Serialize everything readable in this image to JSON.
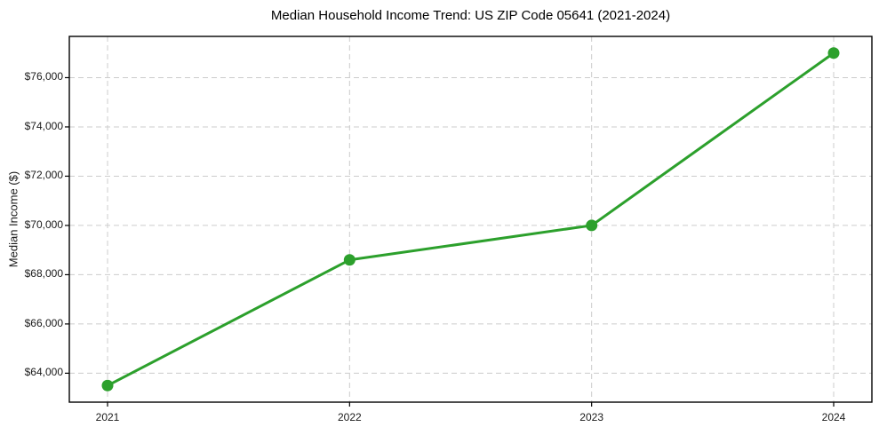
{
  "chart_data": {
    "type": "line",
    "title": "Median Household Income Trend: US ZIP Code 05641 (2021-2024)",
    "xlabel": "",
    "ylabel": "Median Income ($)",
    "x": [
      2021,
      2022,
      2023,
      2024
    ],
    "xtick_labels": [
      "2021",
      "2022",
      "2023",
      "2024"
    ],
    "values": [
      63500,
      68600,
      70000,
      77000
    ],
    "yticks": [
      64000,
      66000,
      68000,
      70000,
      72000,
      74000,
      76000
    ],
    "ytick_labels": [
      "$64,000",
      "$66,000",
      "$68,000",
      "$70,000",
      "$72,000",
      "$74,000",
      "$76,000"
    ],
    "ylim": [
      62825,
      77675
    ],
    "grid": true,
    "legend": false,
    "line_color": "#2ca02c",
    "marker": "circle",
    "marker_color": "#2ca02c",
    "grid_color": "#cccccc",
    "axis_color": "#000000",
    "text_color": "#1a1a1a",
    "background_color": "#ffffff"
  }
}
